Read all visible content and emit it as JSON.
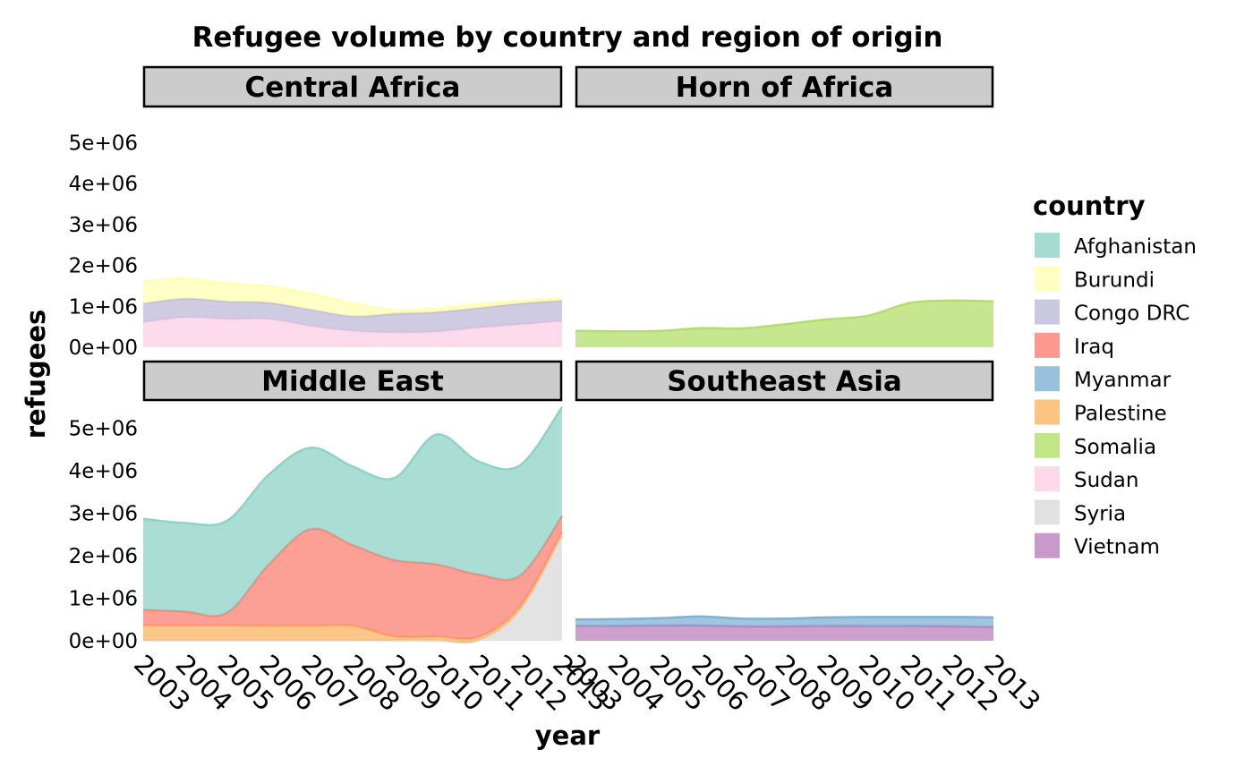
{
  "chart_data": {
    "type": "area",
    "title": "Refugee volume by country and region of origin",
    "xlabel": "year",
    "ylabel": "refugees",
    "legend_title": "country",
    "legend_position": "right",
    "ylim": [
      0,
      5600000
    ],
    "y_ticks": [
      0,
      1000000,
      2000000,
      3000000,
      4000000,
      5000000
    ],
    "y_tick_labels": [
      "0e+00",
      "1e+06",
      "2e+06",
      "3e+06",
      "4e+06",
      "5e+06"
    ],
    "x": [
      2003,
      2004,
      2005,
      2006,
      2007,
      2008,
      2009,
      2010,
      2011,
      2012,
      2013
    ],
    "x_tick_labels": [
      "2003",
      "2004",
      "2005",
      "2006",
      "2007",
      "2008",
      "2009",
      "2010",
      "2011",
      "2012",
      "2013"
    ],
    "grid": false,
    "countries": [
      {
        "name": "Afghanistan",
        "color": "#8DD3C7"
      },
      {
        "name": "Burundi",
        "color": "#FFFFB3"
      },
      {
        "name": "Congo DRC",
        "color": "#BEBADA"
      },
      {
        "name": "Iraq",
        "color": "#FB8072"
      },
      {
        "name": "Myanmar",
        "color": "#80B1D3"
      },
      {
        "name": "Palestine",
        "color": "#FDB462"
      },
      {
        "name": "Somalia",
        "color": "#B3DE69"
      },
      {
        "name": "Sudan",
        "color": "#FCCDE5"
      },
      {
        "name": "Syria",
        "color": "#D9D9D9"
      },
      {
        "name": "Vietnam",
        "color": "#BC80BD"
      }
    ],
    "panels": [
      {
        "region": "Central Africa",
        "series": [
          {
            "name": "Burundi",
            "values": [
              530000,
              490000,
              440000,
              400000,
              390000,
              310000,
              90000,
              90000,
              100000,
              70000,
              70000
            ]
          },
          {
            "name": "Congo DRC",
            "values": [
              460000,
              460000,
              430000,
              400000,
              400000,
              360000,
              460000,
              480000,
              480000,
              510000,
              500000
            ]
          },
          {
            "name": "Sudan",
            "values": [
              610000,
              730000,
              690000,
              690000,
              520000,
              400000,
              360000,
              380000,
              480000,
              560000,
              640000
            ]
          }
        ]
      },
      {
        "region": "Horn of Africa",
        "series": [
          {
            "name": "Somalia",
            "values": [
              400000,
              390000,
              395000,
              465000,
              460000,
              560000,
              680000,
              770000,
              1080000,
              1140000,
              1120000
            ]
          }
        ]
      },
      {
        "region": "Middle East",
        "series": [
          {
            "name": "Afghanistan",
            "values": [
              2140000,
              2080000,
              2160000,
              2110000,
              1910000,
              1850000,
              1930000,
              3050000,
              2660000,
              2590000,
              2560000
            ]
          },
          {
            "name": "Iraq",
            "values": [
              370000,
              330000,
              300000,
              1450000,
              2280000,
              1900000,
              1800000,
              1700000,
              1470000,
              730000,
              390000
            ]
          },
          {
            "name": "Palestine",
            "values": [
              350000,
              350000,
              350000,
              340000,
              340000,
              340000,
              90000,
              90000,
              80000,
              80000,
              80000
            ]
          },
          {
            "name": "Syria",
            "values": [
              10000,
              10000,
              10000,
              10000,
              10000,
              10000,
              10000,
              10000,
              10000,
              730000,
              2470000
            ]
          }
        ]
      },
      {
        "region": "Southeast Asia",
        "series": [
          {
            "name": "Myanmar",
            "values": [
              150000,
              160000,
              170000,
              210000,
              180000,
              180000,
              200000,
              210000,
              210000,
              220000,
              230000
            ]
          },
          {
            "name": "Vietnam",
            "values": [
              350000,
              350000,
              360000,
              360000,
              340000,
              340000,
              350000,
              350000,
              350000,
              340000,
              320000
            ]
          }
        ]
      }
    ]
  }
}
